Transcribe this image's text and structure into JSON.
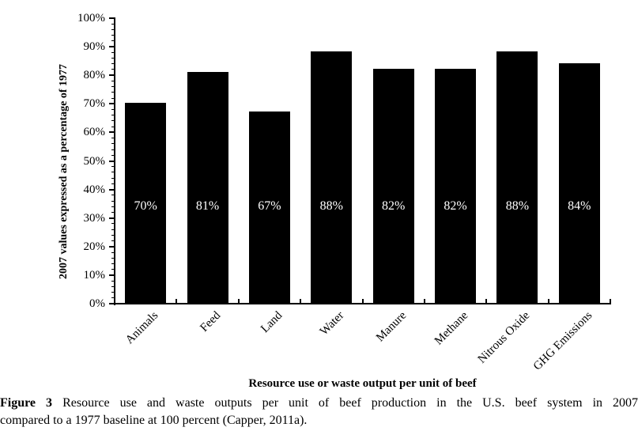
{
  "figure": {
    "caption_prefix": "Figure 3",
    "caption_line1_rest": "Resource use and waste outputs per unit of beef production in the U.S. beef system in 2007",
    "caption_line2": "compared to a 1977 baseline at 100 percent (Capper, 2011a)."
  },
  "chart_data": {
    "type": "bar",
    "title": "",
    "categories": [
      "Animals",
      "Feed",
      "Land",
      "Water",
      "Manure",
      "Methane",
      "Nitrous Oxide",
      "GHG Emissions"
    ],
    "values": [
      70,
      81,
      67,
      88,
      82,
      82,
      88,
      84
    ],
    "bar_labels": [
      "70%",
      "81%",
      "67%",
      "88%",
      "82%",
      "82%",
      "88%",
      "84%"
    ],
    "xlabel": "Resource use or waste output per unit of beef",
    "ylabel": "2007 values expressed as a percentage of 1977",
    "ylim": [
      0,
      100
    ],
    "y_tick_interval": 10,
    "y_minor_tick_interval": 2,
    "y_tick_labels": [
      "0%",
      "10%",
      "20%",
      "30%",
      "40%",
      "50%",
      "60%",
      "70%",
      "80%",
      "90%",
      "100%"
    ],
    "grid": false,
    "legend": false,
    "bar_color": "#000000",
    "bar_label_color": "#ffffff",
    "axis_color": "#000000",
    "background": "#ffffff"
  }
}
